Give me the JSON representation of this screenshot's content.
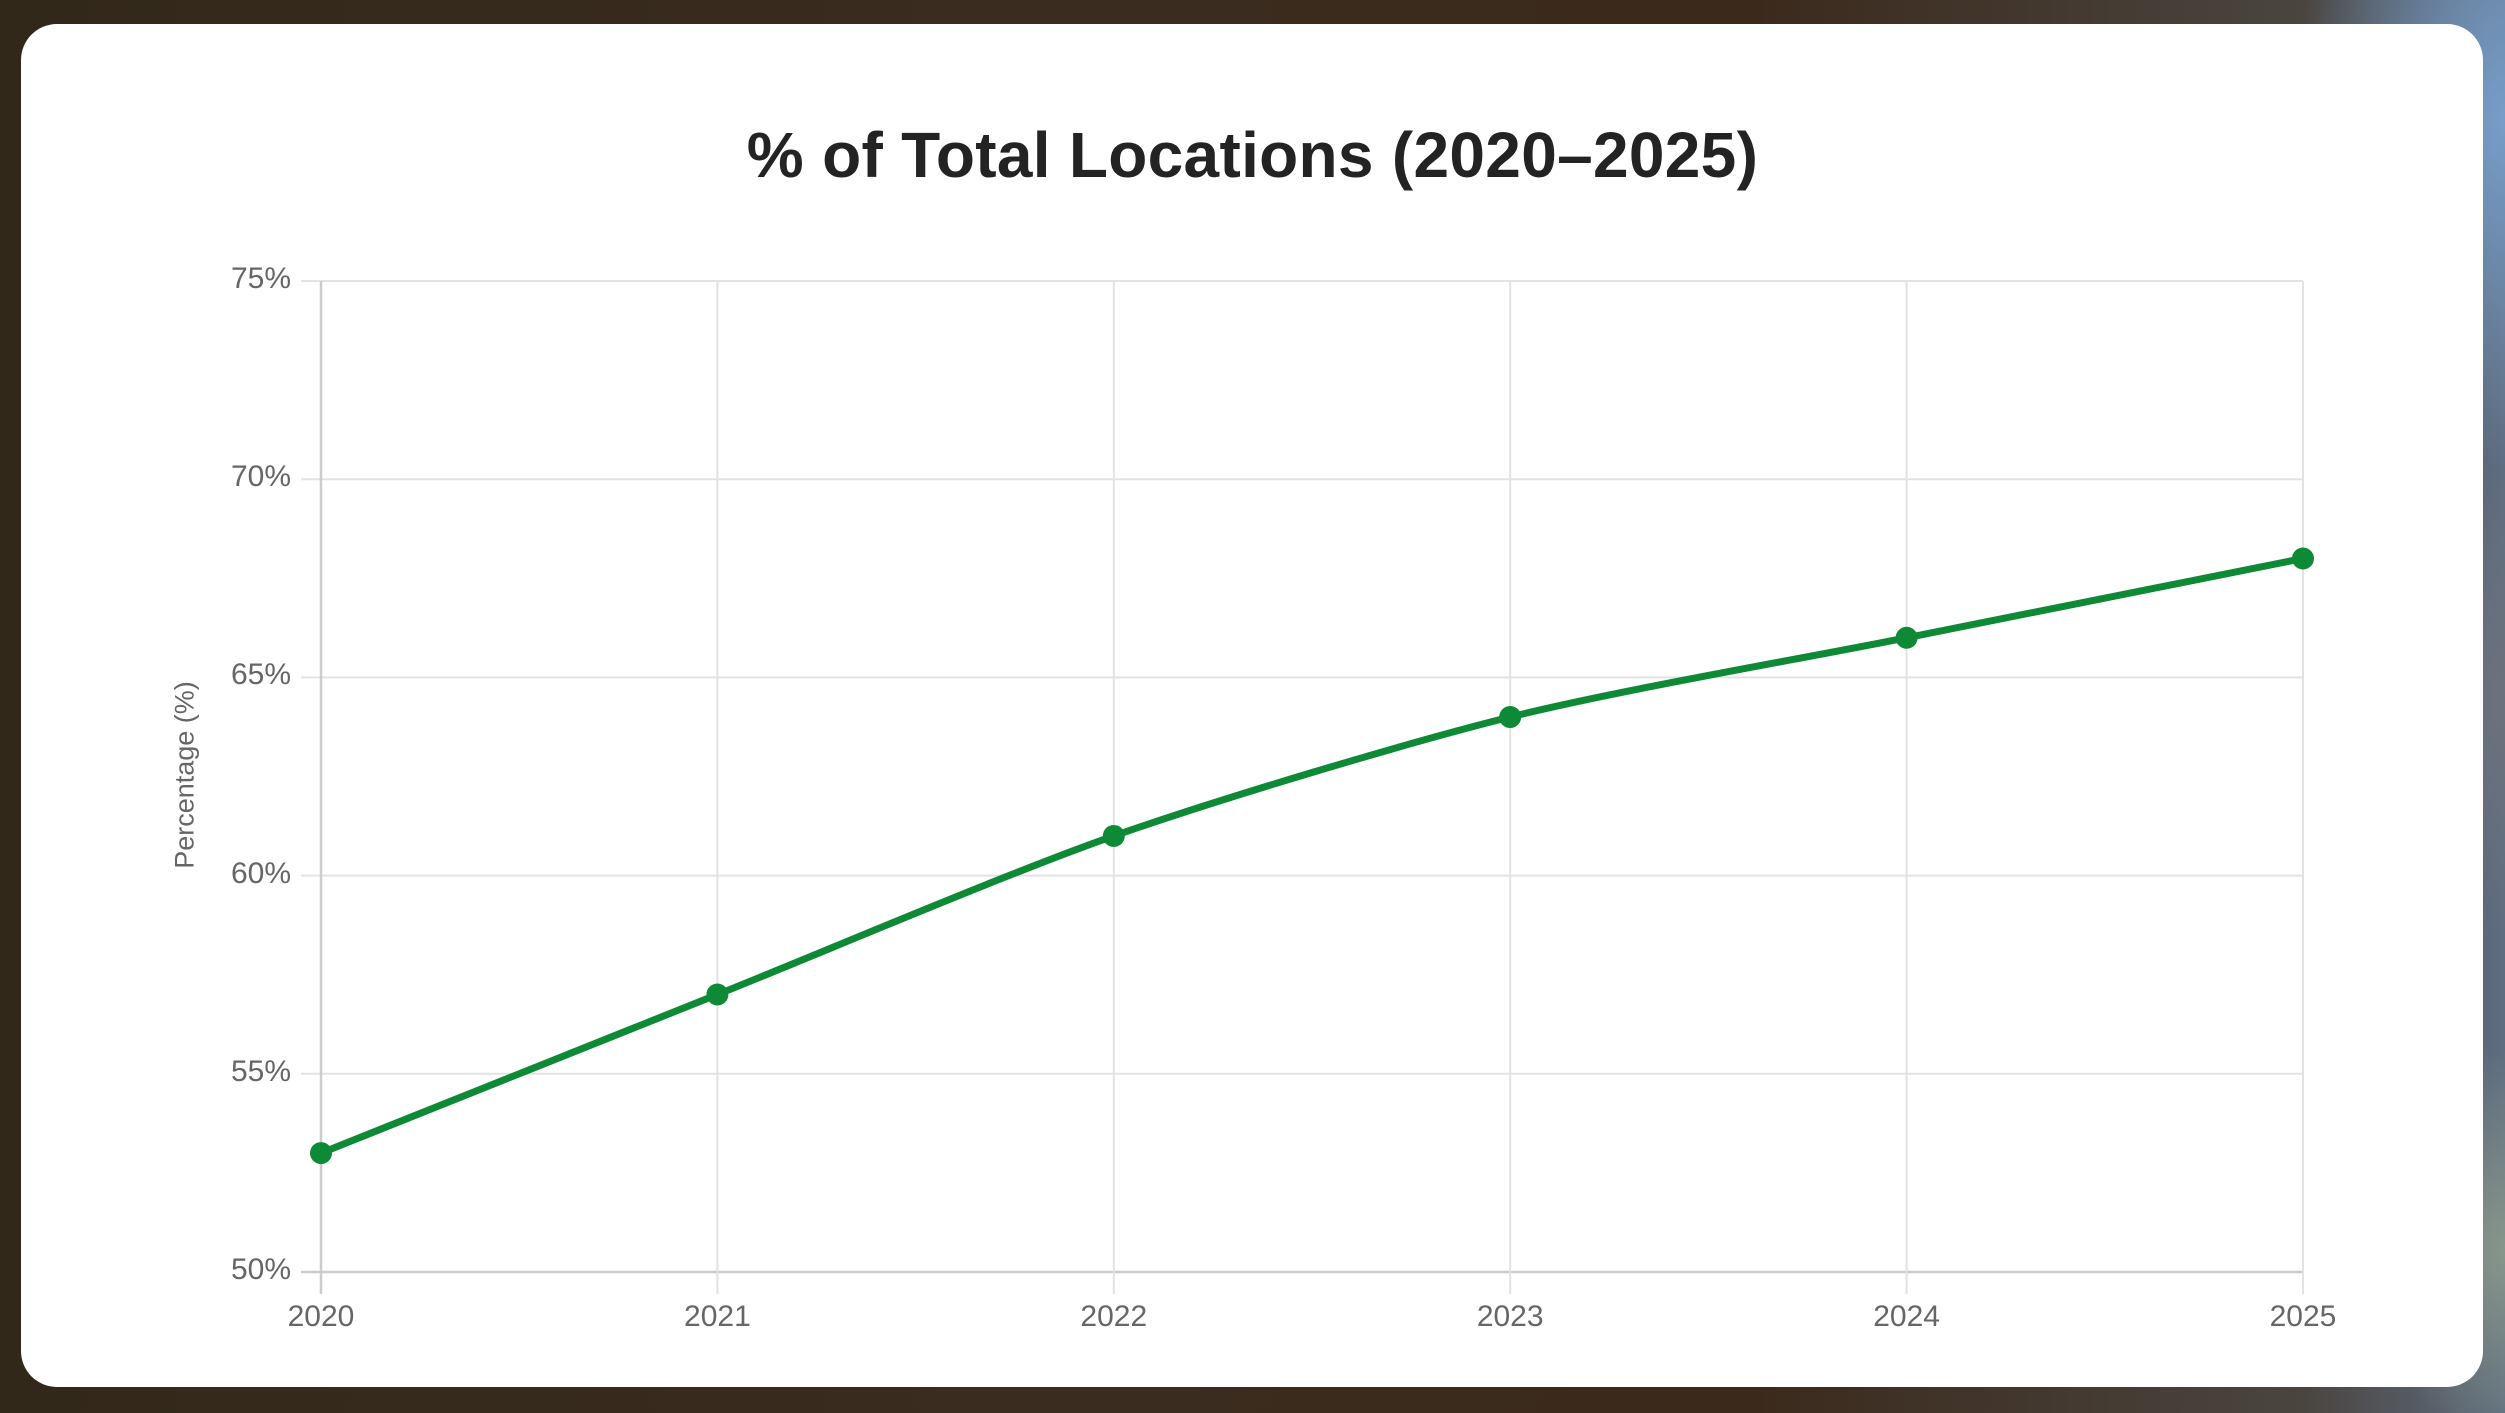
{
  "chart_data": {
    "type": "line",
    "title": "% of Total Locations (2020–2025)",
    "xlabel": "",
    "ylabel": "Percentage (%)",
    "categories": [
      "2020",
      "2021",
      "2022",
      "2023",
      "2024",
      "2025"
    ],
    "series": [
      {
        "name": "% of Total Locations",
        "values": [
          53,
          57,
          61,
          64,
          66,
          68
        ],
        "color": "#0e8a36"
      }
    ],
    "ylim": [
      50,
      75
    ],
    "yticks": [
      50,
      55,
      60,
      65,
      70,
      75
    ],
    "ytick_labels": [
      "50%",
      "55%",
      "60%",
      "65%",
      "70%",
      "75%"
    ],
    "grid": true,
    "legend": "none",
    "smooth": true,
    "markers": true
  },
  "colors": {
    "line": "#0e8a36",
    "grid": "#e3e3e3",
    "axis": "#cccccc",
    "tick_text": "#666666",
    "title_text": "#232323"
  }
}
